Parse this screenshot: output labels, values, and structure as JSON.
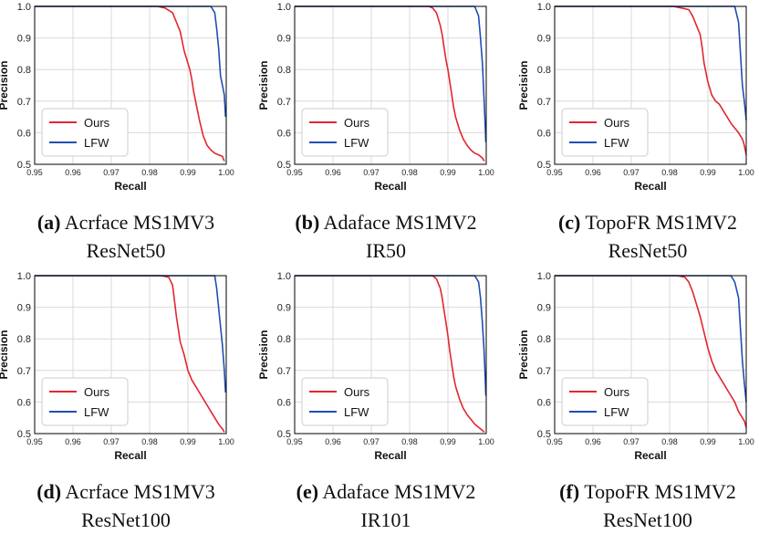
{
  "figure": {
    "colors": {
      "ours": "#e3262f",
      "lfw": "#1f4fb4",
      "grid": "#d9d9d9",
      "axis": "#000000"
    }
  },
  "chart_data": [
    {
      "type": "line",
      "xlabel": "Recall",
      "ylabel": "Precision",
      "xlim": [
        0.95,
        1.0
      ],
      "ylim": [
        0.5,
        1.0
      ],
      "xticks": [
        "0.95",
        "0.96",
        "0.97",
        "0.98",
        "0.99",
        "1.00"
      ],
      "yticks": [
        "0.5",
        "0.6",
        "0.7",
        "0.8",
        "0.9",
        "1.0"
      ],
      "grid": true,
      "legend": "lower-left",
      "caption": {
        "letter": "(a)",
        "line1": "Acrface MS1MV3",
        "line2": "ResNet50"
      },
      "series": [
        {
          "name": "Ours",
          "color": "#e3262f",
          "x": [
            0.95,
            0.982,
            0.984,
            0.986,
            0.987,
            0.988,
            0.9885,
            0.989,
            0.9895,
            0.99,
            0.9905,
            0.991,
            0.9915,
            0.992,
            0.9925,
            0.993,
            0.994,
            0.995,
            0.996,
            0.997,
            0.998,
            0.999,
            0.9995
          ],
          "y": [
            1.0,
            1.0,
            0.995,
            0.98,
            0.95,
            0.92,
            0.89,
            0.86,
            0.84,
            0.82,
            0.8,
            0.77,
            0.73,
            0.7,
            0.67,
            0.64,
            0.59,
            0.56,
            0.545,
            0.535,
            0.53,
            0.525,
            0.51
          ]
        },
        {
          "name": "LFW",
          "color": "#1f4fb4",
          "x": [
            0.95,
            0.996,
            0.997,
            0.9975,
            0.998,
            0.9985,
            0.999,
            0.9995,
            0.9998
          ],
          "y": [
            1.0,
            1.0,
            0.98,
            0.93,
            0.87,
            0.78,
            0.75,
            0.72,
            0.65
          ]
        }
      ]
    },
    {
      "type": "line",
      "xlabel": "Recall",
      "ylabel": "Precision",
      "xlim": [
        0.95,
        1.0
      ],
      "ylim": [
        0.5,
        1.0
      ],
      "xticks": [
        "0.95",
        "0.96",
        "0.97",
        "0.98",
        "0.99",
        "1.00"
      ],
      "yticks": [
        "0.5",
        "0.6",
        "0.7",
        "0.8",
        "0.9",
        "1.0"
      ],
      "grid": true,
      "legend": "lower-left",
      "caption": {
        "letter": "(b)",
        "line1": "Adaface MS1MV2",
        "line2": "IR50"
      },
      "series": [
        {
          "name": "Ours",
          "color": "#e3262f",
          "x": [
            0.95,
            0.985,
            0.986,
            0.987,
            0.988,
            0.9885,
            0.989,
            0.9895,
            0.99,
            0.9905,
            0.991,
            0.9915,
            0.992,
            0.993,
            0.994,
            0.995,
            0.996,
            0.997,
            0.998,
            0.999,
            0.9995
          ],
          "y": [
            1.0,
            1.0,
            0.995,
            0.98,
            0.94,
            0.91,
            0.87,
            0.83,
            0.8,
            0.76,
            0.72,
            0.68,
            0.65,
            0.61,
            0.58,
            0.56,
            0.545,
            0.535,
            0.53,
            0.52,
            0.51
          ]
        },
        {
          "name": "LFW",
          "color": "#1f4fb4",
          "x": [
            0.95,
            0.997,
            0.998,
            0.9985,
            0.999,
            0.9993,
            0.9996,
            0.9999
          ],
          "y": [
            1.0,
            1.0,
            0.97,
            0.9,
            0.82,
            0.74,
            0.66,
            0.57
          ]
        }
      ]
    },
    {
      "type": "line",
      "xlabel": "Recall",
      "ylabel": "Precision",
      "xlim": [
        0.95,
        1.0
      ],
      "ylim": [
        0.5,
        1.0
      ],
      "xticks": [
        "0.95",
        "0.96",
        "0.97",
        "0.98",
        "0.99",
        "1.00"
      ],
      "yticks": [
        "0.5",
        "0.6",
        "0.7",
        "0.8",
        "0.9",
        "1.0"
      ],
      "grid": true,
      "legend": "lower-left",
      "caption": {
        "letter": "(c)",
        "line1": "TopoFR MS1MV2",
        "line2": "ResNet50"
      },
      "series": [
        {
          "name": "Ours",
          "color": "#e3262f",
          "x": [
            0.95,
            0.981,
            0.983,
            0.985,
            0.986,
            0.987,
            0.988,
            0.9885,
            0.989,
            0.99,
            0.991,
            0.992,
            0.993,
            0.994,
            0.995,
            0.996,
            0.997,
            0.998,
            0.999,
            0.9995,
            1.0
          ],
          "y": [
            1.0,
            1.0,
            0.995,
            0.99,
            0.97,
            0.94,
            0.91,
            0.87,
            0.82,
            0.76,
            0.72,
            0.7,
            0.69,
            0.67,
            0.65,
            0.63,
            0.615,
            0.6,
            0.58,
            0.56,
            0.53
          ]
        },
        {
          "name": "LFW",
          "color": "#1f4fb4",
          "x": [
            0.95,
            0.997,
            0.998,
            0.9985,
            0.999,
            0.9995,
            1.0
          ],
          "y": [
            1.0,
            1.0,
            0.95,
            0.85,
            0.75,
            0.7,
            0.64
          ]
        }
      ]
    },
    {
      "type": "line",
      "xlabel": "Recall",
      "ylabel": "Precision",
      "xlim": [
        0.95,
        1.0
      ],
      "ylim": [
        0.5,
        1.0
      ],
      "xticks": [
        "0.95",
        "0.96",
        "0.97",
        "0.98",
        "0.99",
        "1.00"
      ],
      "yticks": [
        "0.5",
        "0.6",
        "0.7",
        "0.8",
        "0.9",
        "1.0"
      ],
      "grid": true,
      "legend": "lower-left",
      "caption": {
        "letter": "(d)",
        "line1": "Acrface MS1MV3",
        "line2": "ResNet100"
      },
      "series": [
        {
          "name": "Ours",
          "color": "#e3262f",
          "x": [
            0.95,
            0.983,
            0.985,
            0.986,
            0.9865,
            0.987,
            0.9875,
            0.988,
            0.989,
            0.99,
            0.991,
            0.992,
            0.993,
            0.994,
            0.995,
            0.996,
            0.997,
            0.998,
            0.999,
            0.9995
          ],
          "y": [
            1.0,
            1.0,
            0.995,
            0.97,
            0.92,
            0.87,
            0.83,
            0.79,
            0.75,
            0.7,
            0.67,
            0.65,
            0.63,
            0.61,
            0.59,
            0.57,
            0.55,
            0.53,
            0.515,
            0.505
          ]
        },
        {
          "name": "LFW",
          "color": "#1f4fb4",
          "x": [
            0.95,
            0.997,
            0.9975,
            0.998,
            0.9985,
            0.999,
            0.9995,
            0.9998
          ],
          "y": [
            1.0,
            1.0,
            0.96,
            0.9,
            0.84,
            0.78,
            0.7,
            0.63
          ]
        }
      ]
    },
    {
      "type": "line",
      "xlabel": "Recall",
      "ylabel": "Precision",
      "xlim": [
        0.95,
        1.0
      ],
      "ylim": [
        0.5,
        1.0
      ],
      "xticks": [
        "0.95",
        "0.96",
        "0.97",
        "0.98",
        "0.99",
        "1.00"
      ],
      "yticks": [
        "0.5",
        "0.6",
        "0.7",
        "0.8",
        "0.9",
        "1.0"
      ],
      "grid": true,
      "legend": "lower-left",
      "caption": {
        "letter": "(e)",
        "line1": "Adaface MS1MV2",
        "line2": "IR101"
      },
      "series": [
        {
          "name": "Ours",
          "color": "#e3262f",
          "x": [
            0.95,
            0.986,
            0.987,
            0.988,
            0.9885,
            0.989,
            0.9895,
            0.99,
            0.9905,
            0.991,
            0.9915,
            0.992,
            0.993,
            0.994,
            0.995,
            0.996,
            0.997,
            0.998,
            0.999,
            0.9995
          ],
          "y": [
            1.0,
            1.0,
            0.99,
            0.96,
            0.93,
            0.89,
            0.85,
            0.81,
            0.76,
            0.72,
            0.68,
            0.65,
            0.61,
            0.58,
            0.56,
            0.545,
            0.53,
            0.52,
            0.51,
            0.505
          ]
        },
        {
          "name": "LFW",
          "color": "#1f4fb4",
          "x": [
            0.95,
            0.997,
            0.998,
            0.9985,
            0.999,
            0.9994,
            0.9997,
            0.9999
          ],
          "y": [
            1.0,
            1.0,
            0.98,
            0.93,
            0.85,
            0.77,
            0.69,
            0.62
          ]
        }
      ]
    },
    {
      "type": "line",
      "xlabel": "Recall",
      "ylabel": "Precision",
      "xlim": [
        0.95,
        1.0
      ],
      "ylim": [
        0.5,
        1.0
      ],
      "xticks": [
        "0.95",
        "0.96",
        "0.97",
        "0.98",
        "0.99",
        "1.00"
      ],
      "yticks": [
        "0.5",
        "0.6",
        "0.7",
        "0.8",
        "0.9",
        "1.0"
      ],
      "grid": true,
      "legend": "lower-left",
      "caption": {
        "letter": "(f)",
        "line1": "TopoFR MS1MV2",
        "line2": "ResNet100"
      },
      "series": [
        {
          "name": "Ours",
          "color": "#e3262f",
          "x": [
            0.95,
            0.982,
            0.984,
            0.985,
            0.986,
            0.987,
            0.988,
            0.989,
            0.99,
            0.991,
            0.992,
            0.993,
            0.994,
            0.995,
            0.996,
            0.997,
            0.998,
            0.999,
            0.9995,
            1.0
          ],
          "y": [
            1.0,
            1.0,
            0.995,
            0.98,
            0.95,
            0.91,
            0.87,
            0.82,
            0.77,
            0.73,
            0.7,
            0.68,
            0.66,
            0.64,
            0.62,
            0.6,
            0.57,
            0.55,
            0.54,
            0.52
          ]
        },
        {
          "name": "LFW",
          "color": "#1f4fb4",
          "x": [
            0.95,
            0.996,
            0.997,
            0.998,
            0.9985,
            0.999,
            0.9995,
            1.0
          ],
          "y": [
            1.0,
            1.0,
            0.98,
            0.93,
            0.83,
            0.73,
            0.66,
            0.6
          ]
        }
      ]
    }
  ]
}
